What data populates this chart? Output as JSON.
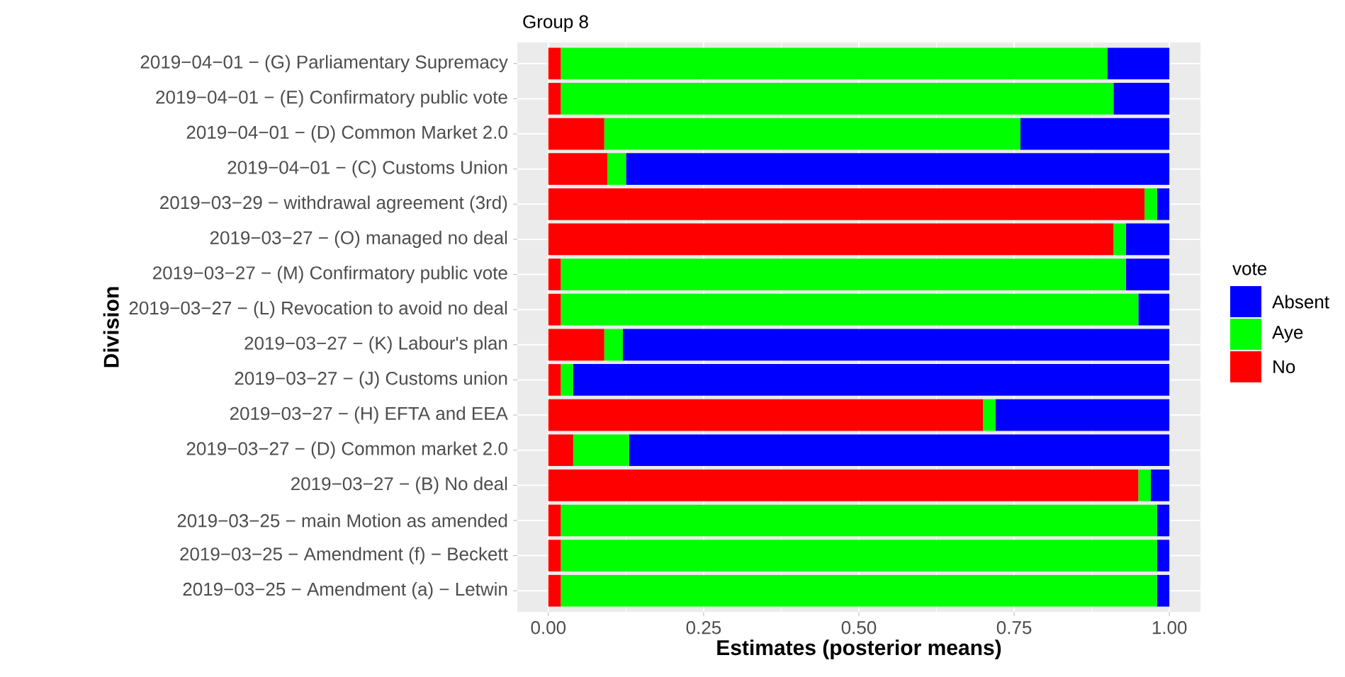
{
  "chart_data": {
    "type": "bar",
    "orientation": "horizontal",
    "stacked": true,
    "title": "Group 8",
    "xlabel": "Estimates (posterior means)",
    "ylabel": "Division",
    "legend_title": "vote",
    "legend": "right",
    "grid": true,
    "categories": [
      "2019−04−01 − (G) Parliamentary Supremacy",
      "2019−04−01 − (E) Confirmatory public vote",
      "2019−04−01 − (D) Common Market 2.0",
      "2019−04−01 − (C) Customs Union",
      "2019−03−29 − withdrawal agreement (3rd)",
      "2019−03−27 − (O) managed no deal",
      "2019−03−27 − (M) Confirmatory public vote",
      "2019−03−27 − (L) Revocation to avoid no deal",
      "2019−03−27 − (K) Labour's plan",
      "2019−03−27 − (J) Customs union",
      "2019−03−27 − (H) EFTA and EEA",
      "2019−03−27 − (D) Common market 2.0",
      "2019−03−27 − (B) No deal",
      "2019−03−25 − main Motion as amended",
      "2019−03−25 − Amendment (f) − Beckett",
      "2019−03−25 − Amendment (a) − Letwin"
    ],
    "series": [
      {
        "name": "No",
        "color": "#ff0000",
        "values": [
          0.02,
          0.02,
          0.09,
          0.095,
          0.96,
          0.91,
          0.02,
          0.02,
          0.09,
          0.02,
          0.7,
          0.04,
          0.95,
          0.02,
          0.02,
          0.02
        ]
      },
      {
        "name": "Aye",
        "color": "#00ff00",
        "values": [
          0.88,
          0.89,
          0.67,
          0.03,
          0.02,
          0.02,
          0.91,
          0.93,
          0.03,
          0.02,
          0.02,
          0.09,
          0.02,
          0.96,
          0.96,
          0.96
        ]
      },
      {
        "name": "Absent",
        "color": "#0000ff",
        "values": [
          0.1,
          0.09,
          0.24,
          0.875,
          0.02,
          0.07,
          0.07,
          0.05,
          0.88,
          0.96,
          0.28,
          0.87,
          0.03,
          0.02,
          0.02,
          0.02
        ]
      }
    ],
    "xlim": [
      -0.05,
      1.05
    ],
    "xticks": [
      {
        "value": 0,
        "label": "0.00"
      },
      {
        "value": 0.25,
        "label": "0.25"
      },
      {
        "value": 0.5,
        "label": "0.50"
      },
      {
        "value": 0.75,
        "label": "0.75"
      },
      {
        "value": 1,
        "label": "1.00"
      }
    ]
  }
}
